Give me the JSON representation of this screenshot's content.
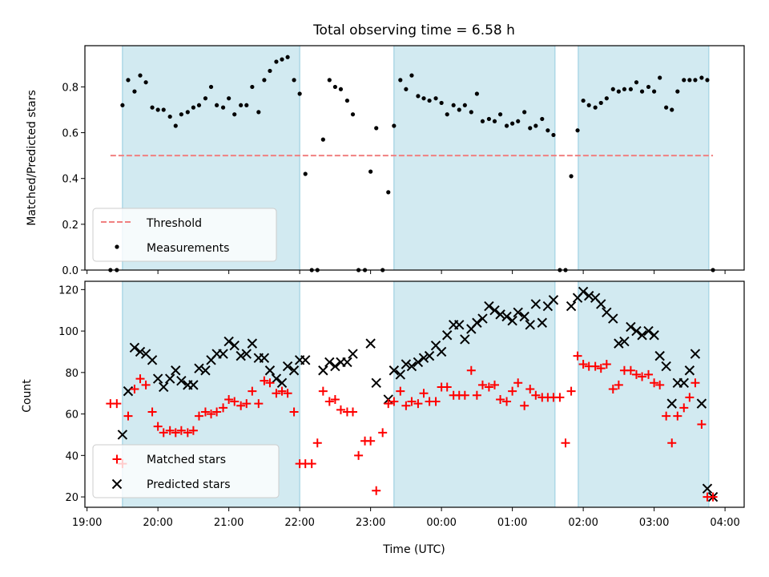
{
  "chart_data": [
    {
      "type": "scatter",
      "title": "Total observing time = 6.58 h",
      "xlabel": "",
      "ylabel": "Matched/Predicted stars",
      "ylim": [
        0,
        0.98
      ],
      "xlim": [
        18.97,
        28.27
      ],
      "yticks": [
        0.0,
        0.2,
        0.4,
        0.6,
        0.8
      ],
      "ytick_labels": [
        "0.0",
        "0.2",
        "0.4",
        "0.6",
        "0.8"
      ],
      "shaded_intervals": [
        [
          19.5,
          22.0
        ],
        [
          23.33,
          25.6
        ],
        [
          25.93,
          27.77
        ]
      ],
      "legend_position": "lower-left",
      "colors": {
        "threshold": "#f08080",
        "measurements": "#000000",
        "band": "#add8e6"
      },
      "threshold": {
        "name": "Threshold",
        "value": 0.5,
        "x_range": [
          19.33,
          27.83
        ]
      },
      "series": [
        {
          "name": "Measurements",
          "x": [
            19.33,
            19.42,
            19.5,
            19.58,
            19.67,
            19.75,
            19.83,
            19.92,
            20.0,
            20.08,
            20.17,
            20.25,
            20.33,
            20.42,
            20.5,
            20.58,
            20.67,
            20.75,
            20.83,
            20.92,
            21.0,
            21.08,
            21.17,
            21.25,
            21.33,
            21.42,
            21.5,
            21.58,
            21.67,
            21.75,
            21.83,
            21.92,
            22.0,
            22.08,
            22.17,
            22.25,
            22.33,
            22.42,
            22.5,
            22.58,
            22.67,
            22.75,
            22.83,
            22.92,
            23.0,
            23.08,
            23.17,
            23.25,
            23.33,
            23.42,
            23.5,
            23.58,
            23.67,
            23.75,
            23.83,
            23.92,
            24.0,
            24.08,
            24.17,
            24.25,
            24.33,
            24.42,
            24.5,
            24.58,
            24.67,
            24.75,
            24.83,
            24.92,
            25.0,
            25.08,
            25.17,
            25.25,
            25.33,
            25.42,
            25.5,
            25.58,
            25.67,
            25.75,
            25.83,
            25.92,
            26.0,
            26.08,
            26.17,
            26.25,
            26.33,
            26.42,
            26.5,
            26.58,
            26.67,
            26.75,
            26.83,
            26.92,
            27.0,
            27.08,
            27.17,
            27.25,
            27.33,
            27.42,
            27.5,
            27.58,
            27.67,
            27.75,
            27.83
          ],
          "y": [
            0.0,
            0.0,
            0.72,
            0.83,
            0.78,
            0.85,
            0.82,
            0.71,
            0.7,
            0.7,
            0.67,
            0.63,
            0.68,
            0.69,
            0.71,
            0.72,
            0.75,
            0.8,
            0.72,
            0.71,
            0.75,
            0.68,
            0.72,
            0.72,
            0.8,
            0.69,
            0.83,
            0.87,
            0.91,
            0.92,
            0.93,
            0.83,
            0.77,
            0.42,
            0.0,
            0.0,
            0.57,
            0.83,
            0.8,
            0.79,
            0.74,
            0.68,
            0.0,
            0.0,
            0.43,
            0.62,
            0.0,
            0.34,
            0.63,
            0.83,
            0.79,
            0.85,
            0.76,
            0.75,
            0.74,
            0.75,
            0.73,
            0.68,
            0.72,
            0.7,
            0.72,
            0.69,
            0.77,
            0.65,
            0.66,
            0.65,
            0.68,
            0.63,
            0.64,
            0.65,
            0.69,
            0.62,
            0.63,
            0.66,
            0.61,
            0.59,
            0.0,
            0.0,
            0.41,
            0.61,
            0.74,
            0.72,
            0.71,
            0.73,
            0.75,
            0.79,
            0.78,
            0.79,
            0.79,
            0.82,
            0.78,
            0.8,
            0.78,
            0.84,
            0.71,
            0.7,
            0.78,
            0.83,
            0.83,
            0.83,
            0.84,
            0.83,
            0.0
          ]
        }
      ]
    },
    {
      "type": "scatter",
      "title": "",
      "xlabel": "Time (UTC)",
      "ylabel": "Count",
      "ylim": [
        15,
        124
      ],
      "xlim": [
        18.97,
        28.27
      ],
      "yticks": [
        20,
        40,
        60,
        80,
        100,
        120
      ],
      "ytick_labels": [
        "20",
        "40",
        "60",
        "80",
        "100",
        "120"
      ],
      "xticks": [
        19,
        20,
        21,
        22,
        23,
        24,
        25,
        26,
        27,
        28
      ],
      "xtick_labels": [
        "19:00",
        "20:00",
        "21:00",
        "22:00",
        "23:00",
        "00:00",
        "01:00",
        "02:00",
        "03:00",
        "04:00"
      ],
      "shaded_intervals": [
        [
          19.5,
          22.0
        ],
        [
          23.33,
          25.6
        ],
        [
          25.93,
          27.77
        ]
      ],
      "legend_position": "lower-left",
      "colors": {
        "matched": "#ff0000",
        "predicted": "#000000",
        "band": "#add8e6"
      },
      "series": [
        {
          "name": "Matched stars",
          "marker": "plus",
          "x": [
            19.33,
            19.42,
            19.5,
            19.58,
            19.67,
            19.75,
            19.83,
            19.92,
            20.0,
            20.08,
            20.17,
            20.25,
            20.33,
            20.42,
            20.5,
            20.58,
            20.67,
            20.75,
            20.83,
            20.92,
            21.0,
            21.08,
            21.17,
            21.25,
            21.33,
            21.42,
            21.5,
            21.58,
            21.67,
            21.75,
            21.83,
            21.92,
            22.0,
            22.08,
            22.17,
            22.25,
            22.33,
            22.42,
            22.5,
            22.58,
            22.67,
            22.75,
            22.83,
            22.92,
            23.0,
            23.08,
            23.17,
            23.25,
            23.33,
            23.42,
            23.5,
            23.58,
            23.67,
            23.75,
            23.83,
            23.92,
            24.0,
            24.08,
            24.17,
            24.25,
            24.33,
            24.42,
            24.5,
            24.58,
            24.67,
            24.75,
            24.83,
            24.92,
            25.0,
            25.08,
            25.17,
            25.25,
            25.33,
            25.42,
            25.5,
            25.58,
            25.67,
            25.75,
            25.83,
            25.92,
            26.0,
            26.08,
            26.17,
            26.25,
            26.33,
            26.42,
            26.5,
            26.58,
            26.67,
            26.75,
            26.83,
            26.92,
            27.0,
            27.08,
            27.17,
            27.25,
            27.33,
            27.42,
            27.5,
            27.58,
            27.67,
            27.75,
            27.83
          ],
          "y": [
            65,
            65,
            36,
            59,
            72,
            77,
            74,
            61,
            54,
            51,
            52,
            51,
            52,
            51,
            52,
            59,
            61,
            60,
            61,
            63,
            67,
            66,
            64,
            65,
            71,
            65,
            76,
            75,
            70,
            71,
            70,
            61,
            36,
            36,
            36,
            46,
            71,
            66,
            67,
            62,
            61,
            61,
            40,
            47,
            47,
            23,
            51,
            65,
            66,
            71,
            64,
            66,
            65,
            70,
            66,
            66,
            73,
            73,
            69,
            69,
            69,
            81,
            69,
            74,
            73,
            74,
            67,
            66,
            71,
            75,
            64,
            72,
            69,
            68,
            68,
            68,
            68,
            46,
            71,
            88,
            84,
            83,
            83,
            82,
            84,
            72,
            74,
            81,
            81,
            79,
            78,
            79,
            75,
            74,
            59,
            46,
            59,
            63,
            68,
            75,
            55,
            20,
            20
          ]
        },
        {
          "name": "Predicted stars",
          "marker": "x",
          "x": [
            19.5,
            19.58,
            19.67,
            19.75,
            19.83,
            19.92,
            20.0,
            20.08,
            20.17,
            20.25,
            20.33,
            20.42,
            20.5,
            20.58,
            20.67,
            20.75,
            20.83,
            20.92,
            21.0,
            21.08,
            21.17,
            21.25,
            21.33,
            21.42,
            21.5,
            21.58,
            21.67,
            21.75,
            21.83,
            21.92,
            22.0,
            22.08,
            22.33,
            22.42,
            22.5,
            22.58,
            22.67,
            22.75,
            23.0,
            23.08,
            23.25,
            23.33,
            23.42,
            23.5,
            23.58,
            23.67,
            23.75,
            23.83,
            23.92,
            24.0,
            24.08,
            24.17,
            24.25,
            24.33,
            24.42,
            24.5,
            24.58,
            24.67,
            24.75,
            24.83,
            24.92,
            25.0,
            25.08,
            25.17,
            25.25,
            25.33,
            25.42,
            25.5,
            25.58,
            25.83,
            25.92,
            26.0,
            26.08,
            26.17,
            26.25,
            26.33,
            26.42,
            26.5,
            26.58,
            26.67,
            26.75,
            26.83,
            26.92,
            27.0,
            27.08,
            27.17,
            27.25,
            27.33,
            27.42,
            27.5,
            27.58,
            27.67,
            27.75,
            27.83
          ],
          "y": [
            50,
            71,
            92,
            90,
            89,
            86,
            77,
            73,
            77,
            81,
            76,
            74,
            74,
            82,
            81,
            86,
            89,
            89,
            95,
            93,
            88,
            89,
            94,
            87,
            87,
            81,
            77,
            75,
            83,
            81,
            86,
            86,
            81,
            85,
            83,
            85,
            85,
            89,
            94,
            75,
            67,
            81,
            79,
            84,
            83,
            85,
            87,
            88,
            93,
            90,
            98,
            103,
            103,
            96,
            101,
            104,
            106,
            112,
            110,
            108,
            107,
            105,
            109,
            107,
            103,
            113,
            104,
            112,
            115,
            112,
            116,
            119,
            117,
            116,
            113,
            109,
            106,
            94,
            95,
            102,
            100,
            98,
            100,
            98,
            88,
            83,
            65,
            75,
            75,
            81,
            89,
            65,
            24,
            20
          ]
        }
      ]
    }
  ]
}
